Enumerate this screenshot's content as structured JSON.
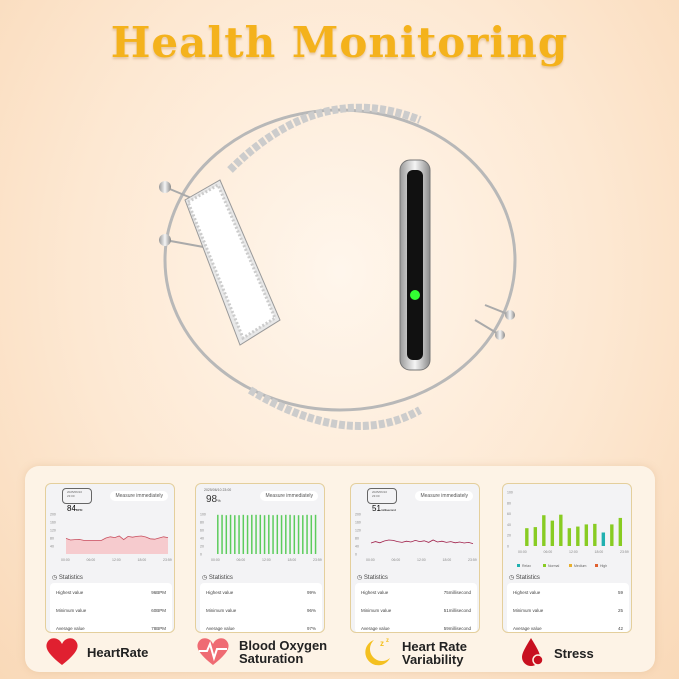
{
  "title": "Health Monitoring",
  "cards": [
    {
      "name": "heart-rate",
      "date": "2025/06/10 23:00",
      "value": "84",
      "unit": "BPM",
      "measure": "Measure immediately",
      "yticks": [
        "200",
        "160",
        "120",
        "80",
        "40"
      ],
      "xticks": [
        "00:00",
        "06:00",
        "12:00",
        "18:00",
        "23:59"
      ],
      "line": [
        78,
        70,
        72,
        73,
        68,
        68,
        68,
        68,
        68,
        80,
        86,
        82,
        90,
        72,
        88,
        84,
        88,
        90,
        85,
        76,
        74,
        80,
        86,
        82
      ],
      "ymax": 200,
      "stats_title": "Statistics",
      "stats": [
        [
          "Highest value",
          "96BPM"
        ],
        [
          "Minimum value",
          "60BPM"
        ],
        [
          "Average value",
          "78BPM"
        ]
      ],
      "color": "#c85060"
    },
    {
      "name": "blood-oxygen",
      "date": "2025/06/10 23:00",
      "value": "98",
      "unit": "%",
      "measure": "Measure immediately",
      "yticks": [
        "100",
        "80",
        "60",
        "40",
        "20",
        "0"
      ],
      "xticks": [
        "00:00",
        "06:00",
        "12:00",
        "18:00",
        "23:59"
      ],
      "bars": [
        98,
        98,
        97,
        98,
        97,
        97,
        98,
        97,
        98,
        98,
        98,
        97,
        98,
        97,
        98,
        97,
        98,
        98,
        97,
        97,
        97,
        98,
        97,
        98
      ],
      "ymax": 100,
      "stats_title": "Statistics",
      "stats": [
        [
          "Highest value",
          "99%"
        ],
        [
          "Minimum value",
          "96%"
        ],
        [
          "Average value",
          "97%"
        ]
      ],
      "color": "#5ccc5c"
    },
    {
      "name": "heart-rate-variability",
      "date": "2025/06/10 23:00",
      "value": "51",
      "unit": "millisecond",
      "measure": "Measure immediately",
      "yticks": [
        "200",
        "160",
        "120",
        "80",
        "40",
        "0"
      ],
      "xticks": [
        "00:00",
        "06:00",
        "12:00",
        "18:00",
        "23:59"
      ],
      "line": [
        55,
        62,
        56,
        65,
        70,
        68,
        62,
        58,
        64,
        60,
        68,
        62,
        66,
        58,
        70,
        60,
        64,
        58,
        62,
        56,
        60,
        55,
        58,
        52
      ],
      "ymax": 200,
      "stats_title": "Statistics",
      "stats": [
        [
          "Highest value",
          "75millisecond"
        ],
        [
          "Minimum value",
          "51millisecond"
        ],
        [
          "Average value",
          "59millisecond"
        ]
      ],
      "color": "#a0204a"
    },
    {
      "name": "stress",
      "yticks": [
        "100",
        "80",
        "60",
        "40",
        "20",
        "0"
      ],
      "xticks": [
        "00:00",
        "06:00",
        "12:00",
        "18:00",
        "23:59"
      ],
      "bars": [
        33,
        35,
        57,
        47,
        58,
        33,
        36,
        40,
        41,
        25,
        40,
        52
      ],
      "bar_levels": [
        "normal",
        "normal",
        "normal",
        "normal",
        "normal",
        "normal",
        "normal",
        "normal",
        "normal",
        "relax",
        "normal",
        "normal"
      ],
      "ymax": 100,
      "legend": [
        [
          "Relax",
          "#20b0b0"
        ],
        [
          "Normal",
          "#88cc22"
        ],
        [
          "Medium",
          "#e8b030"
        ],
        [
          "High",
          "#e06030"
        ]
      ],
      "stats_title": "Statistics",
      "stats": [
        [
          "Highest value",
          "59"
        ],
        [
          "Minimum value",
          "25"
        ],
        [
          "Average value",
          "42"
        ]
      ]
    }
  ],
  "features": [
    {
      "label": "HeartRate",
      "icon": "heart-icon"
    },
    {
      "label": "Blood Oxygen\nSaturation",
      "icon": "heart-pulse-icon"
    },
    {
      "label": "Heart Rate\nVariability",
      "icon": "moon-zzz-icon"
    },
    {
      "label": "Stress",
      "icon": "blood-drop-icon"
    }
  ],
  "colors": {
    "title": "#f4b21c",
    "heart": "#e02030",
    "drop": "#c81020",
    "moon": "#f4c020"
  }
}
